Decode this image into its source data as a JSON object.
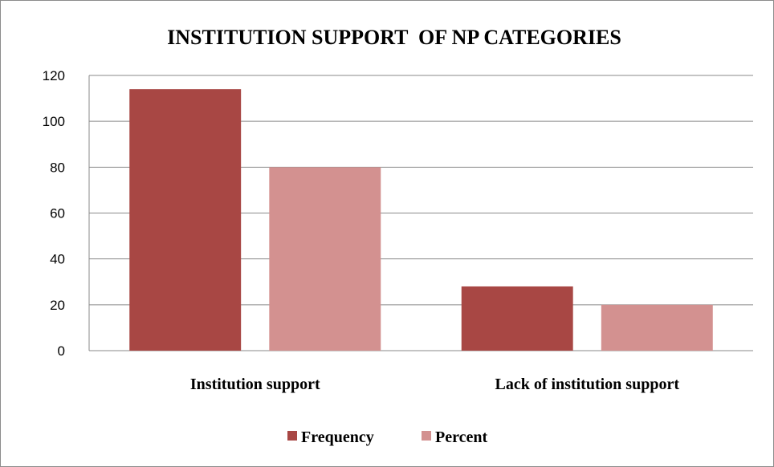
{
  "chart_data": {
    "type": "bar",
    "title": "INSTITUTION SUPPORT  OF NP CATEGORIES",
    "xlabel": "",
    "ylabel": "",
    "categories": [
      "Institution support",
      "Lack of institution support"
    ],
    "series": [
      {
        "name": "Frequency",
        "values": [
          114,
          28
        ],
        "color": "#a84744"
      },
      {
        "name": "Percent",
        "values": [
          80,
          20
        ],
        "color": "#d39190"
      }
    ],
    "ylim": [
      0,
      120
    ],
    "yticks": [
      0,
      20,
      40,
      60,
      80,
      100,
      120
    ],
    "grid": true,
    "legend": "bottom"
  }
}
